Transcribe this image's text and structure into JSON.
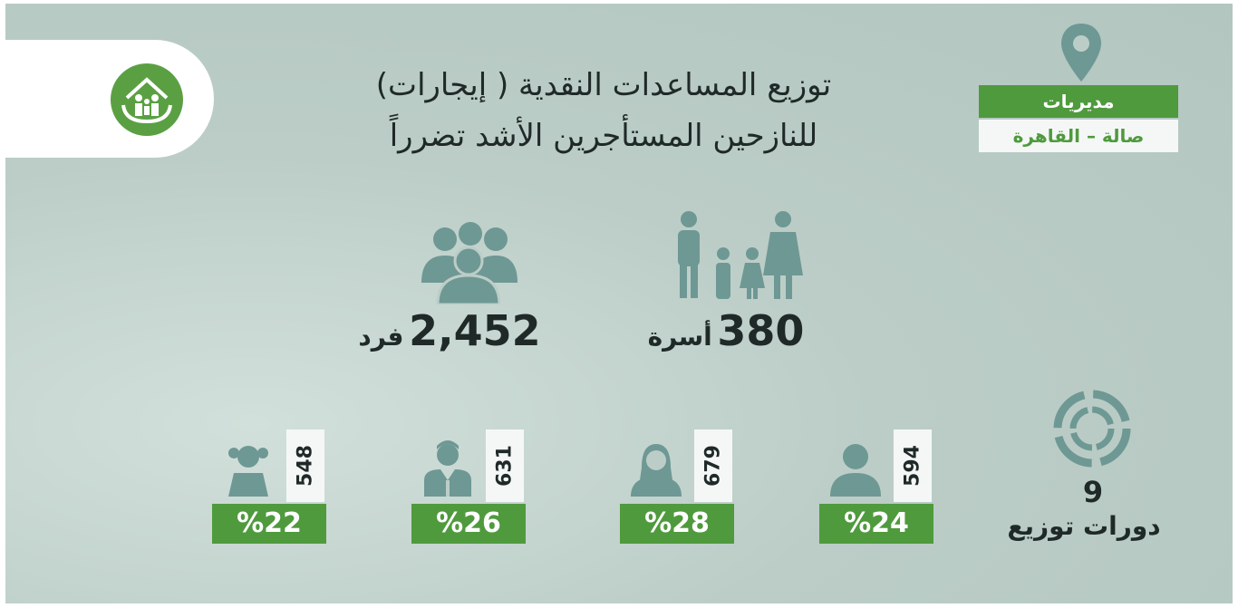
{
  "header": {
    "title_line1": "توزيع المساعدات النقدية ( إيجارات)",
    "title_line2": "للنازحين المستأجرين الأشد تضرراً"
  },
  "location": {
    "label": "مديريات",
    "name": "صالة – القاهرة"
  },
  "stats": {
    "families": {
      "value": "380",
      "label": "أسرة"
    },
    "individuals": {
      "value": "2,452",
      "label": "فرد"
    }
  },
  "cycles": {
    "value": "9",
    "label": "دورات توزيع"
  },
  "groups": [
    {
      "count": "594",
      "percent": "%24"
    },
    {
      "count": "679",
      "percent": "%28"
    },
    {
      "count": "631",
      "percent": "%26"
    },
    {
      "count": "548",
      "percent": "%22"
    }
  ]
}
